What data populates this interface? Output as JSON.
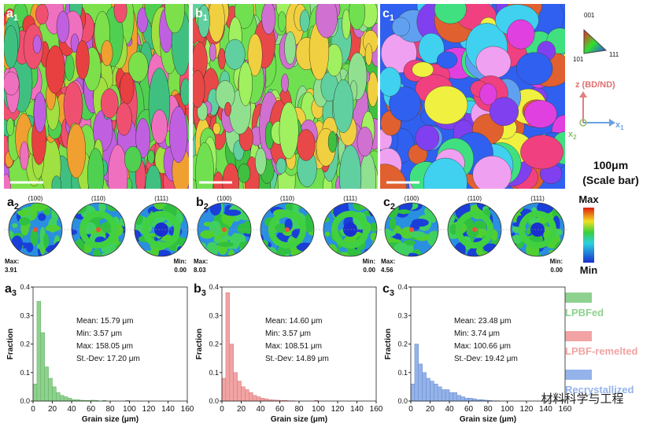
{
  "panels": [
    {
      "map_label": {
        "letter": "a",
        "sub": "1"
      },
      "pf_label": {
        "letter": "a",
        "sub": "2"
      },
      "pf_titles": [
        "(100)",
        "(110)",
        "(111)"
      ],
      "pf_max_label": "Max:",
      "pf_max": "3.91",
      "pf_min_label": "Min:",
      "pf_min": "0.00"
    },
    {
      "map_label": {
        "letter": "b",
        "sub": "1"
      },
      "pf_label": {
        "letter": "b",
        "sub": "2"
      },
      "pf_titles": [
        "(100)",
        "(110)",
        "(111)"
      ],
      "pf_max_label": "Max:",
      "pf_max": "8.03",
      "pf_min_label": "Min:",
      "pf_min": "0.00"
    },
    {
      "map_label": {
        "letter": "c",
        "sub": "1"
      },
      "pf_label": {
        "letter": "c",
        "sub": "2"
      },
      "pf_titles": [
        "(100)",
        "(110)",
        "(111)"
      ],
      "pf_max_label": "Max:",
      "pf_max": "4.56",
      "pf_min_label": "Min:",
      "pf_min": "0.00"
    }
  ],
  "ipf": {
    "top": "001",
    "left": "101",
    "right": "111"
  },
  "axes_key": {
    "z": "z (BD/ND)",
    "x1": {
      "letter": "x",
      "sub": "1"
    },
    "x2": {
      "letter": "x",
      "sub": "2"
    }
  },
  "scale_bar": {
    "value": "100μm",
    "note": "(Scale bar)"
  },
  "colorbar": {
    "max": "Max",
    "min": "Min"
  },
  "legend": [
    {
      "name": "LPBFed",
      "color": "#8fd18f"
    },
    {
      "name": "LPBF-remelted",
      "color": "#f2a3a3"
    },
    {
      "name": "Recrystallized",
      "color": "#94b3ea"
    }
  ],
  "watermark": "材料科学与工程",
  "chart_data": [
    {
      "type": "histogram",
      "panel": {
        "letter": "a",
        "sub": "3"
      },
      "color": "#8fd18f",
      "edge": "#5fae5f",
      "bins": [
        0,
        4,
        8,
        12,
        16,
        20,
        24,
        28,
        32,
        36,
        40,
        44,
        48,
        52,
        56,
        60,
        64,
        68,
        72,
        76,
        80,
        84,
        88,
        92,
        96,
        100
      ],
      "values": [
        0.06,
        0.35,
        0.24,
        0.12,
        0.08,
        0.05,
        0.03,
        0.02,
        0.015,
        0.01,
        0.005,
        0.005,
        0.003,
        0.002,
        0.002,
        0.003,
        0.002,
        0,
        0.002,
        0,
        0,
        0,
        0,
        0,
        0.002
      ],
      "xlim": [
        0,
        160
      ],
      "xticks": [
        0,
        20,
        40,
        60,
        80,
        100,
        120,
        140,
        160
      ],
      "ylim": [
        0,
        0.4
      ],
      "yticks": [
        {
          "value": 0,
          "label": "0.0"
        },
        0.1,
        0.2,
        0.3,
        0.4
      ],
      "xlabel": "Grain size (μm)",
      "ylabel": "Fraction",
      "stats": [
        "Mean:  15.79 μm",
        "Min: 3.57 μm",
        "Max: 158.05 μm",
        "St.-Dev: 17.20 μm"
      ]
    },
    {
      "type": "histogram",
      "panel": {
        "letter": "b",
        "sub": "3"
      },
      "color": "#f2a3a3",
      "edge": "#d77272",
      "bins": [
        0,
        4,
        8,
        12,
        16,
        20,
        24,
        28,
        32,
        36,
        40,
        44,
        48,
        52,
        56,
        60,
        64,
        68,
        72,
        76,
        80,
        84,
        88,
        92,
        96,
        100
      ],
      "values": [
        0.08,
        0.38,
        0.2,
        0.1,
        0.07,
        0.05,
        0.04,
        0.03,
        0.02,
        0.015,
        0.01,
        0.008,
        0.005,
        0.004,
        0.003,
        0.002,
        0.002,
        0.001,
        0.001,
        0,
        0,
        0,
        0,
        0,
        0.002
      ],
      "xlim": [
        0,
        160
      ],
      "xticks": [
        0,
        20,
        40,
        60,
        80,
        100,
        120,
        140,
        160
      ],
      "ylim": [
        0,
        0.4
      ],
      "yticks": [
        {
          "value": 0,
          "label": "0.0"
        },
        0.1,
        0.2,
        0.3,
        0.4
      ],
      "xlabel": "Grain size (μm)",
      "ylabel": "Fraction",
      "stats": [
        "Mean:  14.60 μm",
        "Min: 3.57 μm",
        "Max: 108.51 μm",
        "St.-Dev: 14.89 μm"
      ]
    },
    {
      "type": "histogram",
      "panel": {
        "letter": "c",
        "sub": "3"
      },
      "color": "#94b3ea",
      "edge": "#6487c9",
      "bins": [
        0,
        4,
        8,
        12,
        16,
        20,
        24,
        28,
        32,
        36,
        40,
        44,
        48,
        52,
        56,
        60,
        64,
        68,
        72,
        76,
        80,
        84,
        88,
        92,
        96,
        100
      ],
      "values": [
        0.06,
        0.2,
        0.13,
        0.1,
        0.08,
        0.07,
        0.06,
        0.05,
        0.04,
        0.04,
        0.03,
        0.03,
        0.02,
        0.015,
        0.01,
        0.01,
        0.008,
        0.005,
        0.005,
        0.003,
        0.002,
        0.001,
        0.001,
        0,
        0
      ],
      "xlim": [
        0,
        160
      ],
      "xticks": [
        0,
        20,
        40,
        60,
        80,
        100,
        120,
        140,
        160
      ],
      "ylim": [
        0,
        0.4
      ],
      "yticks": [
        {
          "value": 0,
          "label": "0.0"
        },
        0.1,
        0.2,
        0.3,
        0.4
      ],
      "xlabel": "Grain size (μm)",
      "ylabel": "Fraction",
      "stats": [
        "Mean:  23.48 μm",
        "Min: 3.74 μm",
        "Max: 100.66 μm",
        "St.-Dev: 19.42 μm"
      ]
    }
  ]
}
